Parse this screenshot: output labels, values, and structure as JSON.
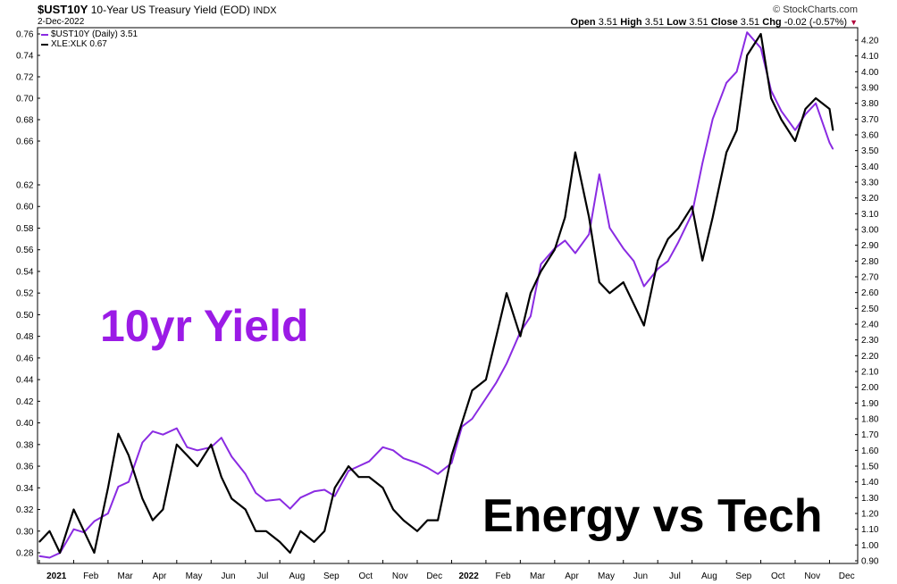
{
  "header": {
    "symbol": "$UST10Y",
    "description": "10-Year US Treasury Yield (EOD)",
    "exchange": "INDX",
    "date": "2-Dec-2022",
    "credit": "© StockCharts.com",
    "open_label": "Open",
    "open": "3.51",
    "high_label": "High",
    "high": "3.51",
    "low_label": "Low",
    "low": "3.51",
    "close_label": "Close",
    "close": "3.51",
    "chg_label": "Chg",
    "chg": "-0.02 (-0.57%)"
  },
  "legend": [
    {
      "label": "$UST10Y (Daily) 3.51",
      "color": "#8a2be2"
    },
    {
      "label": "XLE:XLK 0.67",
      "color": "#000000"
    }
  ],
  "annotations": {
    "yield_text": "10yr Yield",
    "ratio_text": "Energy vs Tech"
  },
  "colors": {
    "yield": "#8a2be2",
    "ratio": "#000000",
    "yield_annotation": "#9b1be6"
  },
  "chart_data": {
    "type": "line",
    "x_tick_labels": [
      "2021",
      "Feb",
      "Mar",
      "Apr",
      "May",
      "Jun",
      "Jul",
      "Aug",
      "Sep",
      "Oct",
      "Nov",
      "Dec",
      "2022",
      "Feb",
      "Mar",
      "Apr",
      "May",
      "Jun",
      "Jul",
      "Aug",
      "Sep",
      "Oct",
      "Nov",
      "Dec"
    ],
    "left_axis": {
      "ticks": [
        "0.76",
        "0.74",
        "0.72",
        "0.70",
        "0.68",
        "0.66",
        "0.62",
        "0.60",
        "0.58",
        "0.56",
        "0.54",
        "0.52",
        "0.50",
        "0.48",
        "0.46",
        "0.44",
        "0.42",
        "0.40",
        "0.38",
        "0.36",
        "0.34",
        "0.32",
        "0.30",
        "0.28"
      ],
      "range": [
        0.27,
        0.77
      ]
    },
    "right_axis": {
      "ticks": [
        "4.20",
        "4.10",
        "4.00",
        "3.90",
        "3.80",
        "3.70",
        "3.60",
        "3.50",
        "3.40",
        "3.30",
        "3.20",
        "3.10",
        "3.00",
        "2.90",
        "2.80",
        "2.70",
        "2.60",
        "2.50",
        "2.40",
        "2.30",
        "2.20",
        "2.10",
        "2.00",
        "1.90",
        "1.80",
        "1.70",
        "1.60",
        "1.50",
        "1.40",
        "1.30",
        "1.20",
        "1.10",
        "1.00",
        "0.90"
      ],
      "range": [
        0.85,
        4.3
      ]
    },
    "x_range": [
      0,
      23.3
    ],
    "series": [
      {
        "name": "$UST10Y (Daily)",
        "axis": "right",
        "color": "#8a2be2",
        "x": [
          0,
          0.3,
          0.6,
          1.0,
          1.3,
          1.6,
          2.0,
          2.3,
          2.6,
          3.0,
          3.3,
          3.6,
          4.0,
          4.3,
          4.6,
          5.0,
          5.3,
          5.6,
          6.0,
          6.3,
          6.6,
          7.0,
          7.3,
          7.6,
          8.0,
          8.3,
          8.6,
          9.0,
          9.3,
          9.6,
          10.0,
          10.3,
          10.6,
          11.0,
          11.3,
          11.6,
          12.0,
          12.3,
          12.6,
          13.0,
          13.3,
          13.6,
          14.0,
          14.3,
          14.6,
          15.0,
          15.3,
          15.6,
          16.0,
          16.3,
          16.6,
          17.0,
          17.3,
          17.6,
          18.0,
          18.3,
          18.6,
          19.0,
          19.3,
          19.6,
          20.0,
          20.3,
          20.6,
          21.0,
          21.3,
          21.6,
          22.0,
          22.3,
          22.6,
          23.0,
          23.1
        ],
        "y": [
          0.93,
          0.92,
          0.95,
          1.1,
          1.08,
          1.15,
          1.2,
          1.37,
          1.4,
          1.65,
          1.72,
          1.7,
          1.74,
          1.62,
          1.6,
          1.62,
          1.68,
          1.56,
          1.45,
          1.33,
          1.28,
          1.29,
          1.23,
          1.3,
          1.34,
          1.35,
          1.31,
          1.47,
          1.5,
          1.53,
          1.62,
          1.6,
          1.55,
          1.52,
          1.49,
          1.45,
          1.52,
          1.75,
          1.8,
          1.93,
          2.03,
          2.15,
          2.35,
          2.45,
          2.78,
          2.88,
          2.93,
          2.85,
          2.97,
          3.35,
          3.01,
          2.88,
          2.8,
          2.64,
          2.75,
          2.8,
          2.92,
          3.1,
          3.42,
          3.7,
          3.93,
          4.0,
          4.25,
          4.15,
          3.88,
          3.75,
          3.63,
          3.73,
          3.8,
          3.55,
          3.51
        ]
      },
      {
        "name": "XLE:XLK",
        "axis": "left",
        "color": "#000000",
        "x": [
          0,
          0.3,
          0.6,
          1.0,
          1.3,
          1.6,
          2.0,
          2.3,
          2.6,
          3.0,
          3.3,
          3.6,
          4.0,
          4.3,
          4.6,
          5.0,
          5.3,
          5.6,
          6.0,
          6.3,
          6.6,
          7.0,
          7.3,
          7.6,
          8.0,
          8.3,
          8.6,
          9.0,
          9.3,
          9.6,
          10.0,
          10.3,
          10.6,
          11.0,
          11.3,
          11.6,
          12.0,
          12.3,
          12.6,
          13.0,
          13.3,
          13.6,
          14.0,
          14.3,
          14.6,
          15.0,
          15.3,
          15.6,
          16.0,
          16.3,
          16.6,
          17.0,
          17.3,
          17.6,
          18.0,
          18.3,
          18.6,
          19.0,
          19.3,
          19.6,
          20.0,
          20.3,
          20.6,
          21.0,
          21.3,
          21.6,
          22.0,
          22.3,
          22.6,
          23.0,
          23.1
        ],
        "y": [
          0.29,
          0.3,
          0.28,
          0.32,
          0.3,
          0.28,
          0.34,
          0.39,
          0.37,
          0.33,
          0.31,
          0.32,
          0.38,
          0.37,
          0.36,
          0.38,
          0.35,
          0.33,
          0.32,
          0.3,
          0.3,
          0.29,
          0.28,
          0.3,
          0.29,
          0.3,
          0.34,
          0.36,
          0.35,
          0.35,
          0.34,
          0.32,
          0.31,
          0.3,
          0.31,
          0.31,
          0.37,
          0.4,
          0.43,
          0.44,
          0.48,
          0.52,
          0.48,
          0.52,
          0.54,
          0.56,
          0.59,
          0.65,
          0.59,
          0.53,
          0.52,
          0.53,
          0.51,
          0.49,
          0.55,
          0.57,
          0.58,
          0.6,
          0.55,
          0.59,
          0.65,
          0.67,
          0.74,
          0.76,
          0.7,
          0.68,
          0.66,
          0.69,
          0.7,
          0.69,
          0.67
        ]
      }
    ],
    "grid": false,
    "legend_position": "top-left"
  }
}
